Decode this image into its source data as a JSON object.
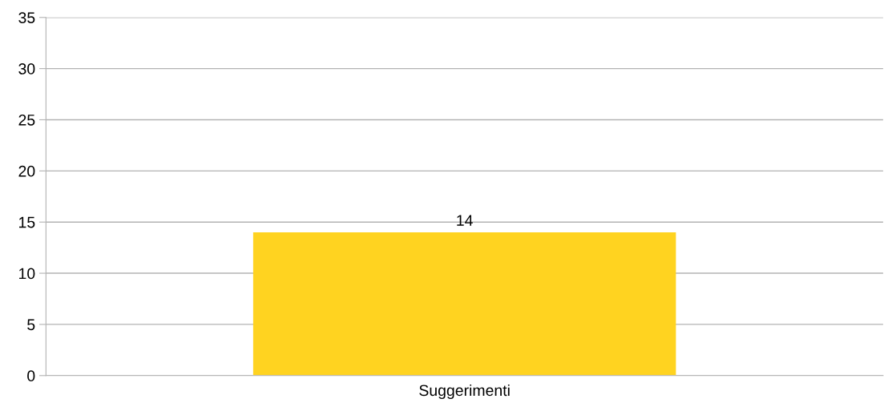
{
  "chart_data": {
    "type": "bar",
    "categories": [
      "Suggerimenti"
    ],
    "values": [
      14
    ],
    "color": "#ffd320",
    "ylim": [
      0,
      35
    ],
    "yticks": [
      0,
      5,
      10,
      15,
      20,
      25,
      30,
      35
    ],
    "grid": "y",
    "data_labels": true
  }
}
